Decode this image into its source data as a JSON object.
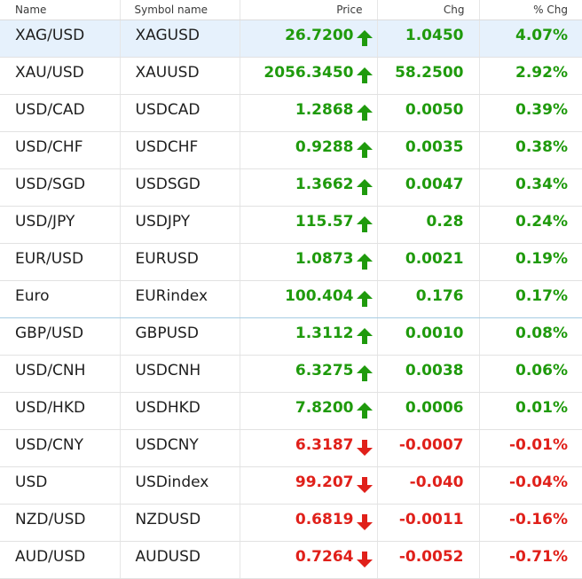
{
  "columns": {
    "name": "Name",
    "symbol": "Symbol name",
    "price": "Price",
    "chg": "Chg",
    "pct": "% Chg"
  },
  "colors": {
    "up": "#1f9a0c",
    "down": "#e0201a",
    "selected_row": "#e6f1fc"
  },
  "icons": {
    "up": "arrow-up-icon",
    "down": "arrow-down-icon"
  },
  "rows": [
    {
      "name": "XAG/USD",
      "symbol": "XAGUSD",
      "price": "26.7200",
      "chg": "1.0450",
      "pct": "4.07%",
      "dir": "up",
      "selected": true
    },
    {
      "name": "XAU/USD",
      "symbol": "XAUUSD",
      "price": "2056.3450",
      "chg": "58.2500",
      "pct": "2.92%",
      "dir": "up"
    },
    {
      "name": "USD/CAD",
      "symbol": "USDCAD",
      "price": "1.2868",
      "chg": "0.0050",
      "pct": "0.39%",
      "dir": "up"
    },
    {
      "name": "USD/CHF",
      "symbol": "USDCHF",
      "price": "0.9288",
      "chg": "0.0035",
      "pct": "0.38%",
      "dir": "up"
    },
    {
      "name": "USD/SGD",
      "symbol": "USDSGD",
      "price": "1.3662",
      "chg": "0.0047",
      "pct": "0.34%",
      "dir": "up"
    },
    {
      "name": "USD/JPY",
      "symbol": "USDJPY",
      "price": "115.57",
      "chg": "0.28",
      "pct": "0.24%",
      "dir": "up"
    },
    {
      "name": "EUR/USD",
      "symbol": "EURUSD",
      "price": "1.0873",
      "chg": "0.0021",
      "pct": "0.19%",
      "dir": "up"
    },
    {
      "name": "Euro",
      "symbol": "EURindex",
      "price": "100.404",
      "chg": "0.176",
      "pct": "0.17%",
      "dir": "up",
      "divider": true
    },
    {
      "name": "GBP/USD",
      "symbol": "GBPUSD",
      "price": "1.3112",
      "chg": "0.0010",
      "pct": "0.08%",
      "dir": "up"
    },
    {
      "name": "USD/CNH",
      "symbol": "USDCNH",
      "price": "6.3275",
      "chg": "0.0038",
      "pct": "0.06%",
      "dir": "up"
    },
    {
      "name": "USD/HKD",
      "symbol": "USDHKD",
      "price": "7.8200",
      "chg": "0.0006",
      "pct": "0.01%",
      "dir": "up"
    },
    {
      "name": "USD/CNY",
      "symbol": "USDCNY",
      "price": "6.3187",
      "chg": "-0.0007",
      "pct": "-0.01%",
      "dir": "down"
    },
    {
      "name": "USD",
      "symbol": "USDindex",
      "price": "99.207",
      "chg": "-0.040",
      "pct": "-0.04%",
      "dir": "down"
    },
    {
      "name": "NZD/USD",
      "symbol": "NZDUSD",
      "price": "0.6819",
      "chg": "-0.0011",
      "pct": "-0.16%",
      "dir": "down"
    },
    {
      "name": "AUD/USD",
      "symbol": "AUDUSD",
      "price": "0.7264",
      "chg": "-0.0052",
      "pct": "-0.71%",
      "dir": "down"
    }
  ]
}
